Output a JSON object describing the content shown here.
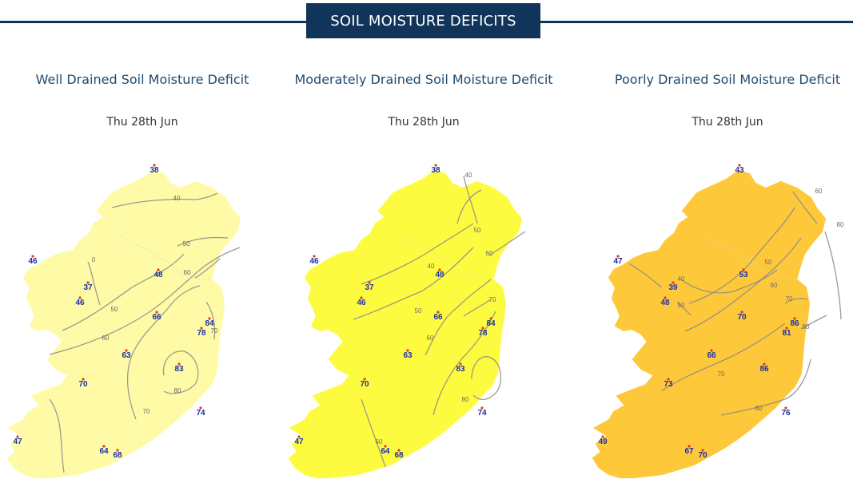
{
  "header": {
    "title": "SOIL MOISTURE DEFICITS"
  },
  "colors": {
    "brand": "#10345a",
    "title_text": "#1f4a72",
    "station_text": "#1a2fa8",
    "contour": "#8a8a8a"
  },
  "maps": [
    {
      "title": "Well Drained Soil Moisture Deficit",
      "date": "Thu 28th Jun",
      "fill": "#fefaa6",
      "stations": [
        {
          "name": "north",
          "value": "38"
        },
        {
          "name": "northwest",
          "value": "46"
        },
        {
          "name": "west-1",
          "value": "37"
        },
        {
          "name": "west-2",
          "value": "46"
        },
        {
          "name": "central-north",
          "value": "48"
        },
        {
          "name": "central",
          "value": "66"
        },
        {
          "name": "east-1",
          "value": "84"
        },
        {
          "name": "east-2",
          "value": "78"
        },
        {
          "name": "midland",
          "value": "63"
        },
        {
          "name": "southeast-inland",
          "value": "83"
        },
        {
          "name": "shannon",
          "value": "70"
        },
        {
          "name": "southeast",
          "value": "74"
        },
        {
          "name": "southwest",
          "value": "47"
        },
        {
          "name": "south-1",
          "value": "64"
        },
        {
          "name": "south-2",
          "value": "68"
        }
      ],
      "contours": [
        "0",
        "40",
        "50",
        "50",
        "60",
        "60",
        "70",
        "70",
        "80",
        "80"
      ]
    },
    {
      "title": "Moderately Drained Soil Moisture Deficit",
      "date": "Thu 28th Jun",
      "fill": "#fdfb40",
      "stations": [
        {
          "name": "north",
          "value": "38"
        },
        {
          "name": "northwest",
          "value": "46"
        },
        {
          "name": "west-1",
          "value": "37"
        },
        {
          "name": "west-2",
          "value": "46"
        },
        {
          "name": "central-north",
          "value": "48"
        },
        {
          "name": "central",
          "value": "66"
        },
        {
          "name": "east-1",
          "value": "84"
        },
        {
          "name": "east-2",
          "value": "78"
        },
        {
          "name": "midland",
          "value": "63"
        },
        {
          "name": "southeast-inland",
          "value": "83"
        },
        {
          "name": "shannon",
          "value": "70"
        },
        {
          "name": "southeast",
          "value": "74"
        },
        {
          "name": "southwest",
          "value": "47"
        },
        {
          "name": "south-1",
          "value": "64"
        },
        {
          "name": "south-2",
          "value": "68"
        }
      ],
      "contours": [
        "40",
        "40",
        "50",
        "50",
        "60",
        "60",
        "70",
        "70",
        "80",
        "60"
      ]
    },
    {
      "title": "Poorly Drained Soil Moisture Deficit",
      "date": "Thu 28th Jun",
      "fill": "#fdc83a",
      "stations": [
        {
          "name": "north",
          "value": "43"
        },
        {
          "name": "northwest",
          "value": "47"
        },
        {
          "name": "west-1",
          "value": "39"
        },
        {
          "name": "west-2",
          "value": "48"
        },
        {
          "name": "central-north",
          "value": "53"
        },
        {
          "name": "central",
          "value": "70"
        },
        {
          "name": "east-1",
          "value": "86"
        },
        {
          "name": "east-2",
          "value": "81"
        },
        {
          "name": "midland",
          "value": "66"
        },
        {
          "name": "southeast-inland",
          "value": "86"
        },
        {
          "name": "shannon",
          "value": "73"
        },
        {
          "name": "southeast",
          "value": "76"
        },
        {
          "name": "southwest",
          "value": "49"
        },
        {
          "name": "south-1",
          "value": "67"
        },
        {
          "name": "south-2",
          "value": "70"
        }
      ],
      "contours": [
        "40",
        "50",
        "60",
        "60",
        "80",
        "50",
        "60",
        "70",
        "70",
        "80",
        "80"
      ]
    }
  ]
}
